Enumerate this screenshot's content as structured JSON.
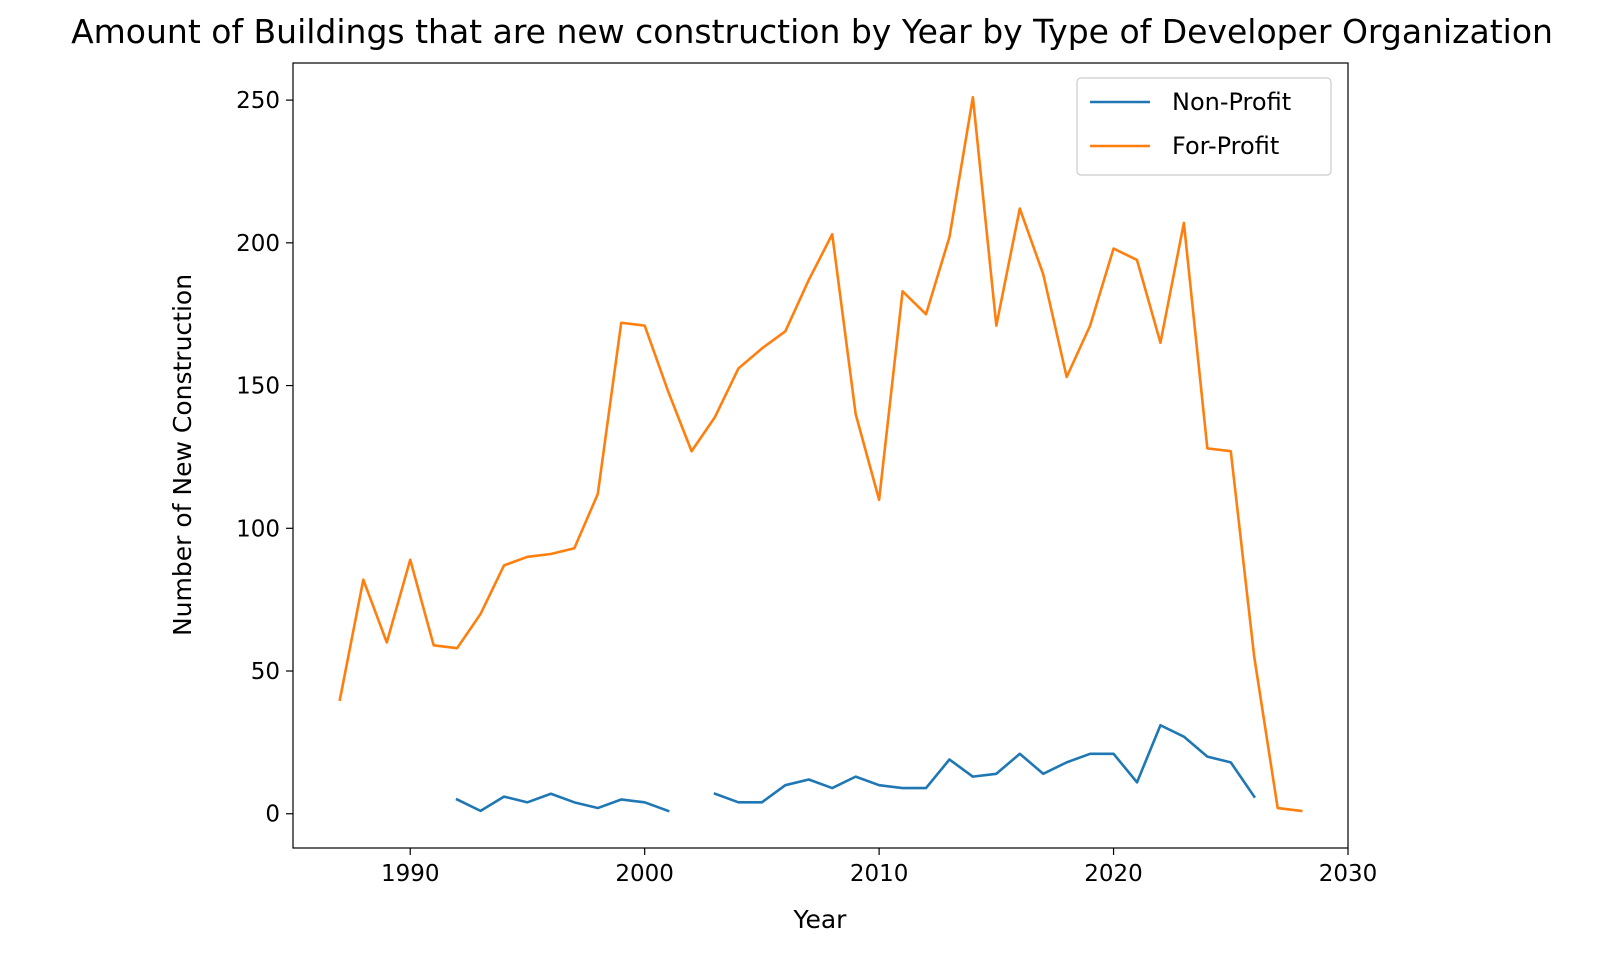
{
  "chart_data": {
    "type": "line",
    "title": "Amount of Buildings that are new construction by Year by Type of Developer Organization",
    "xlabel": "Year",
    "ylabel": "Number of New Construction",
    "xlim": [
      1985,
      2030
    ],
    "ylim": [
      -12,
      263
    ],
    "xticks": [
      1990,
      2000,
      2010,
      2020,
      2030
    ],
    "yticks": [
      0,
      50,
      100,
      150,
      200,
      250
    ],
    "grid": false,
    "legend_position": "top-right",
    "series": [
      {
        "name": "Non-Profit",
        "color": "#1f77b4",
        "points": [
          [
            1992,
            5
          ],
          [
            1993,
            1
          ],
          [
            1994,
            6
          ],
          [
            1995,
            4
          ],
          [
            1996,
            7
          ],
          [
            1997,
            4
          ],
          [
            1998,
            2
          ],
          [
            1999,
            5
          ],
          [
            2000,
            4
          ],
          [
            2001,
            1
          ],
          [
            2002,
            null
          ],
          [
            2003,
            7
          ],
          [
            2004,
            4
          ],
          [
            2005,
            4
          ],
          [
            2006,
            10
          ],
          [
            2007,
            12
          ],
          [
            2008,
            9
          ],
          [
            2009,
            13
          ],
          [
            2010,
            10
          ],
          [
            2011,
            9
          ],
          [
            2012,
            9
          ],
          [
            2013,
            19
          ],
          [
            2014,
            13
          ],
          [
            2015,
            14
          ],
          [
            2016,
            21
          ],
          [
            2017,
            14
          ],
          [
            2018,
            18
          ],
          [
            2019,
            21
          ],
          [
            2020,
            21
          ],
          [
            2021,
            11
          ],
          [
            2022,
            31
          ],
          [
            2023,
            27
          ],
          [
            2024,
            20
          ],
          [
            2025,
            18
          ],
          [
            2026,
            6
          ]
        ]
      },
      {
        "name": "For-Profit",
        "color": "#ff7f0e",
        "points": [
          [
            1987,
            40
          ],
          [
            1988,
            82
          ],
          [
            1989,
            60
          ],
          [
            1990,
            89
          ],
          [
            1991,
            59
          ],
          [
            1992,
            58
          ],
          [
            1993,
            70
          ],
          [
            1994,
            87
          ],
          [
            1995,
            90
          ],
          [
            1996,
            91
          ],
          [
            1997,
            93
          ],
          [
            1998,
            112
          ],
          [
            1999,
            172
          ],
          [
            2000,
            171
          ],
          [
            2001,
            148
          ],
          [
            2002,
            127
          ],
          [
            2003,
            139
          ],
          [
            2004,
            156
          ],
          [
            2005,
            163
          ],
          [
            2006,
            169
          ],
          [
            2007,
            187
          ],
          [
            2008,
            203
          ],
          [
            2009,
            140
          ],
          [
            2010,
            110
          ],
          [
            2011,
            183
          ],
          [
            2012,
            175
          ],
          [
            2013,
            202
          ],
          [
            2014,
            251
          ],
          [
            2015,
            171
          ],
          [
            2016,
            212
          ],
          [
            2017,
            189
          ],
          [
            2018,
            153
          ],
          [
            2019,
            171
          ],
          [
            2020,
            198
          ],
          [
            2021,
            194
          ],
          [
            2022,
            165
          ],
          [
            2023,
            207
          ],
          [
            2024,
            128
          ],
          [
            2025,
            127
          ],
          [
            2026,
            55
          ],
          [
            2027,
            2
          ],
          [
            2028,
            1
          ]
        ]
      }
    ]
  }
}
